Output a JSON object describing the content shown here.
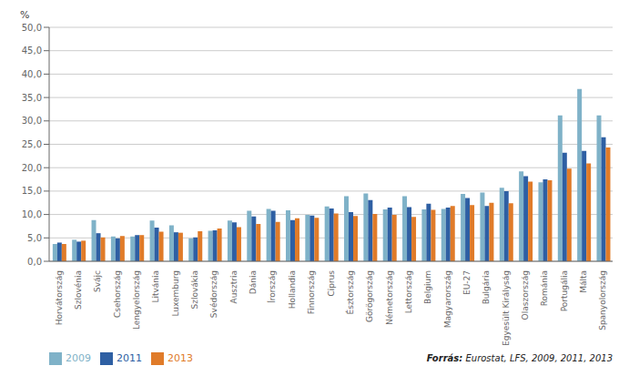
{
  "chart_data": {
    "type": "bar",
    "categories": [
      "Horvátország",
      "Szlovénia",
      "Svájc",
      "Csehország",
      "Lengyelország",
      "Litvánia",
      "Luxemburg",
      "Szlovákia",
      "Svédország",
      "Ausztria",
      "Dánia",
      "Írország",
      "Hollandia",
      "Finnország",
      "Ciprus",
      "Észtország",
      "Görögország",
      "Németország",
      "Lettország",
      "Belgium",
      "Magyarország",
      "EU-27",
      "Bulgária",
      "Egyesült Királyság",
      "Olaszország",
      "Románia",
      "Portugália",
      "Málta",
      "Spanyolország"
    ],
    "series": [
      {
        "name": "2009",
        "color": "#7fb2c8",
        "values": [
          3.7,
          4.6,
          8.8,
          5.3,
          5.3,
          8.7,
          7.7,
          4.9,
          6.5,
          8.7,
          10.8,
          11.2,
          10.9,
          9.9,
          11.7,
          13.9,
          14.5,
          11.1,
          13.9,
          11.1,
          11.2,
          14.4,
          14.7,
          15.7,
          19.2,
          16.9,
          31.2,
          36.8,
          31.2
        ]
      },
      {
        "name": "2011",
        "color": "#2e5fa3",
        "values": [
          4.0,
          4.2,
          6.0,
          4.9,
          5.6,
          7.2,
          6.2,
          5.1,
          6.6,
          8.3,
          9.6,
          10.8,
          8.8,
          9.8,
          11.3,
          10.5,
          13.1,
          11.5,
          11.6,
          12.3,
          11.5,
          13.5,
          11.8,
          15.0,
          18.2,
          17.5,
          23.2,
          23.6,
          26.5
        ]
      },
      {
        "name": "2013",
        "color": "#e07b29",
        "values": [
          3.7,
          4.4,
          5.1,
          5.4,
          5.6,
          6.3,
          6.1,
          6.4,
          7.0,
          7.3,
          8.0,
          8.4,
          9.2,
          9.3,
          10.2,
          9.7,
          10.1,
          9.9,
          9.5,
          11.0,
          11.8,
          12.0,
          12.5,
          12.4,
          17.0,
          17.3,
          19.8,
          20.9,
          24.3
        ]
      }
    ],
    "y_label": "%",
    "ylim": [
      0,
      50
    ],
    "yticks": [
      {
        "value": 0,
        "label": "0,0"
      },
      {
        "value": 5,
        "label": "5,0"
      },
      {
        "value": 10,
        "label": "10,0"
      },
      {
        "value": 15,
        "label": "15,0"
      },
      {
        "value": 20,
        "label": "20,0"
      },
      {
        "value": 25,
        "label": "25,0"
      },
      {
        "value": 30,
        "label": "30,0"
      },
      {
        "value": 35,
        "label": "35,0"
      },
      {
        "value": 40,
        "label": "40,0"
      },
      {
        "value": 45,
        "label": "45,0"
      },
      {
        "value": 50,
        "label": "50,0"
      }
    ],
    "grid": true,
    "legend": "bottom",
    "annotations": [
      "Forrás:",
      "Eurostat, LFS, 2009, 2011, 2013"
    ]
  }
}
